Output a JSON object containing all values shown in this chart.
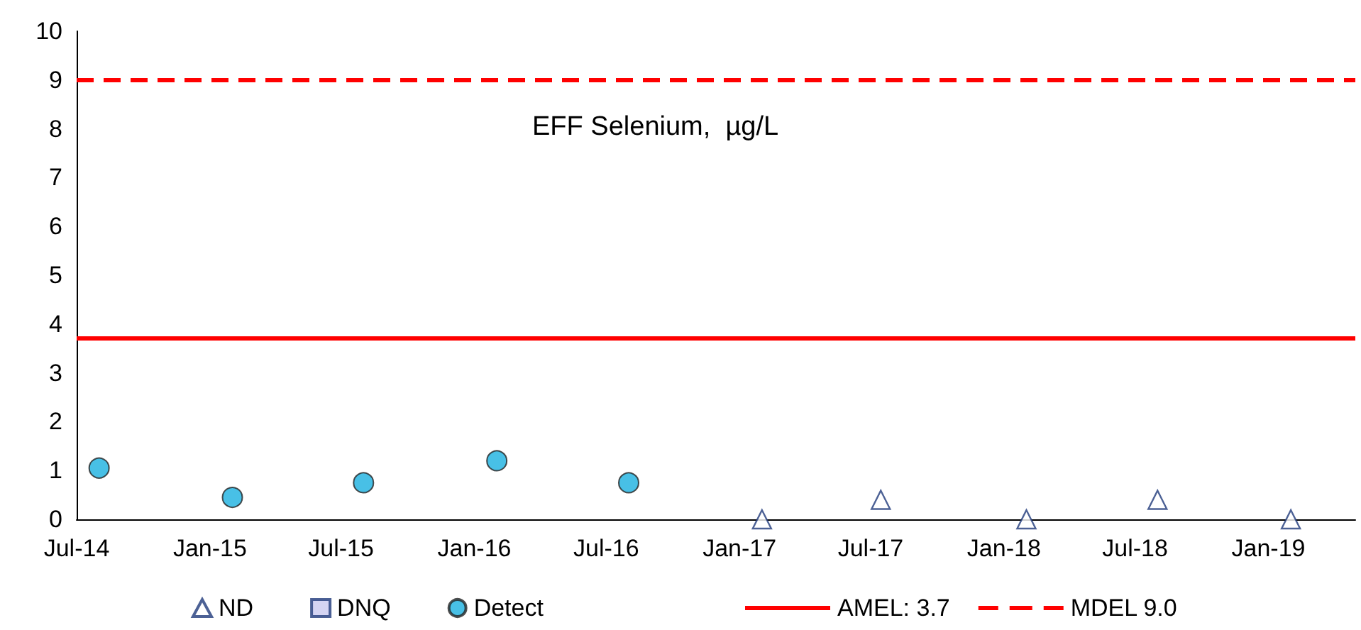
{
  "chart_data": {
    "type": "scatter",
    "title": "EFF Selenium,  µg/L",
    "xlim": [
      "2014-07",
      "2019-05"
    ],
    "xticks": [
      {
        "value": "2014-07",
        "label": "Jul-14"
      },
      {
        "value": "2015-01",
        "label": "Jan-15"
      },
      {
        "value": "2015-07",
        "label": "Jul-15"
      },
      {
        "value": "2016-01",
        "label": "Jan-16"
      },
      {
        "value": "2016-07",
        "label": "Jul-16"
      },
      {
        "value": "2017-01",
        "label": "Jan-17"
      },
      {
        "value": "2017-07",
        "label": "Jul-17"
      },
      {
        "value": "2018-01",
        "label": "Jan-18"
      },
      {
        "value": "2018-07",
        "label": "Jul-18"
      },
      {
        "value": "2019-01",
        "label": "Jan-19"
      }
    ],
    "ylim": [
      0,
      10
    ],
    "yticks": [
      0,
      1,
      2,
      3,
      4,
      5,
      6,
      7,
      8,
      9,
      10
    ],
    "grid": false,
    "legend": "bottom",
    "series": [
      {
        "name": "ND",
        "color": "#1f3a7a",
        "marker": "triangle",
        "x": [
          "2017-02-01",
          "2017-07-15",
          "2018-02-01",
          "2018-08-01",
          "2019-02-01"
        ],
        "values": [
          0,
          0.4,
          0,
          0.4,
          0
        ]
      },
      {
        "name": "DNQ",
        "color": "#c9c9f0",
        "marker": "square"
      },
      {
        "name": "Detect",
        "color": "#1ab0e0",
        "marker": "circle",
        "x": [
          "2014-08-01",
          "2015-02-01",
          "2015-08-01",
          "2016-02-01",
          "2016-08-01"
        ],
        "values": [
          1.05,
          0.45,
          0.75,
          1.2,
          0.75
        ]
      }
    ],
    "ref_lines": [
      {
        "axis": "y",
        "value": 3.7,
        "label": "AMEL: 3.7",
        "color": "#ff0000",
        "line_style": "solid"
      },
      {
        "axis": "y",
        "value": 9.0,
        "label": "MDEL 9.0",
        "color": "#ff0000",
        "line_style": "dashed"
      }
    ]
  }
}
